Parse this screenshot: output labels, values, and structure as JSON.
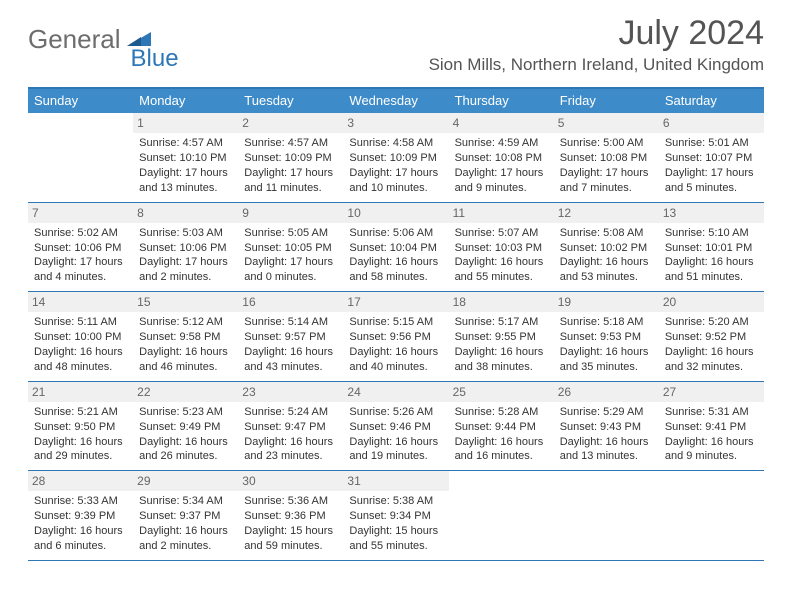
{
  "brand": {
    "part1": "General",
    "part2": "Blue"
  },
  "title": "July 2024",
  "subtitle": "Sion Mills, Northern Ireland, United Kingdom",
  "colors": {
    "header_bg": "#3d8bc8",
    "rule": "#2d77b7",
    "num_bg": "#f0f0f0",
    "text": "#333333",
    "muted": "#6d6d6d"
  },
  "dayNames": [
    "Sunday",
    "Monday",
    "Tuesday",
    "Wednesday",
    "Thursday",
    "Friday",
    "Saturday"
  ],
  "weeks": [
    [
      {},
      {
        "n": "1",
        "a": "Sunrise: 4:57 AM",
        "b": "Sunset: 10:10 PM",
        "c": "Daylight: 17 hours",
        "d": "and 13 minutes."
      },
      {
        "n": "2",
        "a": "Sunrise: 4:57 AM",
        "b": "Sunset: 10:09 PM",
        "c": "Daylight: 17 hours",
        "d": "and 11 minutes."
      },
      {
        "n": "3",
        "a": "Sunrise: 4:58 AM",
        "b": "Sunset: 10:09 PM",
        "c": "Daylight: 17 hours",
        "d": "and 10 minutes."
      },
      {
        "n": "4",
        "a": "Sunrise: 4:59 AM",
        "b": "Sunset: 10:08 PM",
        "c": "Daylight: 17 hours",
        "d": "and 9 minutes."
      },
      {
        "n": "5",
        "a": "Sunrise: 5:00 AM",
        "b": "Sunset: 10:08 PM",
        "c": "Daylight: 17 hours",
        "d": "and 7 minutes."
      },
      {
        "n": "6",
        "a": "Sunrise: 5:01 AM",
        "b": "Sunset: 10:07 PM",
        "c": "Daylight: 17 hours",
        "d": "and 5 minutes."
      }
    ],
    [
      {
        "n": "7",
        "a": "Sunrise: 5:02 AM",
        "b": "Sunset: 10:06 PM",
        "c": "Daylight: 17 hours",
        "d": "and 4 minutes."
      },
      {
        "n": "8",
        "a": "Sunrise: 5:03 AM",
        "b": "Sunset: 10:06 PM",
        "c": "Daylight: 17 hours",
        "d": "and 2 minutes."
      },
      {
        "n": "9",
        "a": "Sunrise: 5:05 AM",
        "b": "Sunset: 10:05 PM",
        "c": "Daylight: 17 hours",
        "d": "and 0 minutes."
      },
      {
        "n": "10",
        "a": "Sunrise: 5:06 AM",
        "b": "Sunset: 10:04 PM",
        "c": "Daylight: 16 hours",
        "d": "and 58 minutes."
      },
      {
        "n": "11",
        "a": "Sunrise: 5:07 AM",
        "b": "Sunset: 10:03 PM",
        "c": "Daylight: 16 hours",
        "d": "and 55 minutes."
      },
      {
        "n": "12",
        "a": "Sunrise: 5:08 AM",
        "b": "Sunset: 10:02 PM",
        "c": "Daylight: 16 hours",
        "d": "and 53 minutes."
      },
      {
        "n": "13",
        "a": "Sunrise: 5:10 AM",
        "b": "Sunset: 10:01 PM",
        "c": "Daylight: 16 hours",
        "d": "and 51 minutes."
      }
    ],
    [
      {
        "n": "14",
        "a": "Sunrise: 5:11 AM",
        "b": "Sunset: 10:00 PM",
        "c": "Daylight: 16 hours",
        "d": "and 48 minutes."
      },
      {
        "n": "15",
        "a": "Sunrise: 5:12 AM",
        "b": "Sunset: 9:58 PM",
        "c": "Daylight: 16 hours",
        "d": "and 46 minutes."
      },
      {
        "n": "16",
        "a": "Sunrise: 5:14 AM",
        "b": "Sunset: 9:57 PM",
        "c": "Daylight: 16 hours",
        "d": "and 43 minutes."
      },
      {
        "n": "17",
        "a": "Sunrise: 5:15 AM",
        "b": "Sunset: 9:56 PM",
        "c": "Daylight: 16 hours",
        "d": "and 40 minutes."
      },
      {
        "n": "18",
        "a": "Sunrise: 5:17 AM",
        "b": "Sunset: 9:55 PM",
        "c": "Daylight: 16 hours",
        "d": "and 38 minutes."
      },
      {
        "n": "19",
        "a": "Sunrise: 5:18 AM",
        "b": "Sunset: 9:53 PM",
        "c": "Daylight: 16 hours",
        "d": "and 35 minutes."
      },
      {
        "n": "20",
        "a": "Sunrise: 5:20 AM",
        "b": "Sunset: 9:52 PM",
        "c": "Daylight: 16 hours",
        "d": "and 32 minutes."
      }
    ],
    [
      {
        "n": "21",
        "a": "Sunrise: 5:21 AM",
        "b": "Sunset: 9:50 PM",
        "c": "Daylight: 16 hours",
        "d": "and 29 minutes."
      },
      {
        "n": "22",
        "a": "Sunrise: 5:23 AM",
        "b": "Sunset: 9:49 PM",
        "c": "Daylight: 16 hours",
        "d": "and 26 minutes."
      },
      {
        "n": "23",
        "a": "Sunrise: 5:24 AM",
        "b": "Sunset: 9:47 PM",
        "c": "Daylight: 16 hours",
        "d": "and 23 minutes."
      },
      {
        "n": "24",
        "a": "Sunrise: 5:26 AM",
        "b": "Sunset: 9:46 PM",
        "c": "Daylight: 16 hours",
        "d": "and 19 minutes."
      },
      {
        "n": "25",
        "a": "Sunrise: 5:28 AM",
        "b": "Sunset: 9:44 PM",
        "c": "Daylight: 16 hours",
        "d": "and 16 minutes."
      },
      {
        "n": "26",
        "a": "Sunrise: 5:29 AM",
        "b": "Sunset: 9:43 PM",
        "c": "Daylight: 16 hours",
        "d": "and 13 minutes."
      },
      {
        "n": "27",
        "a": "Sunrise: 5:31 AM",
        "b": "Sunset: 9:41 PM",
        "c": "Daylight: 16 hours",
        "d": "and 9 minutes."
      }
    ],
    [
      {
        "n": "28",
        "a": "Sunrise: 5:33 AM",
        "b": "Sunset: 9:39 PM",
        "c": "Daylight: 16 hours",
        "d": "and 6 minutes."
      },
      {
        "n": "29",
        "a": "Sunrise: 5:34 AM",
        "b": "Sunset: 9:37 PM",
        "c": "Daylight: 16 hours",
        "d": "and 2 minutes."
      },
      {
        "n": "30",
        "a": "Sunrise: 5:36 AM",
        "b": "Sunset: 9:36 PM",
        "c": "Daylight: 15 hours",
        "d": "and 59 minutes."
      },
      {
        "n": "31",
        "a": "Sunrise: 5:38 AM",
        "b": "Sunset: 9:34 PM",
        "c": "Daylight: 15 hours",
        "d": "and 55 minutes."
      },
      {},
      {},
      {}
    ]
  ]
}
